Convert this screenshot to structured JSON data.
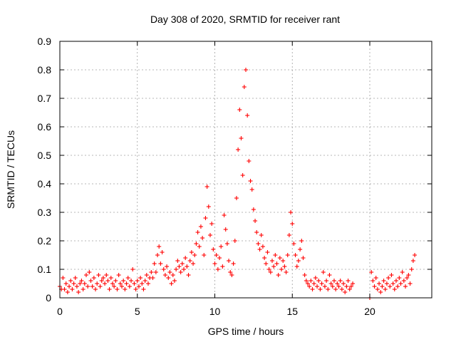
{
  "chart_data": {
    "type": "scatter",
    "title": "Day 308 of 2020, SRMTID for receiver rant",
    "xlabel": "GPS time / hours",
    "ylabel": "SRMTID / TECUs",
    "xlim": [
      0,
      24
    ],
    "ylim": [
      0,
      0.9
    ],
    "xticks": [
      0,
      5,
      10,
      15,
      20
    ],
    "yticks": [
      0,
      0.1,
      0.2,
      0.3,
      0.4,
      0.5,
      0.6,
      0.7,
      0.8,
      0.9
    ],
    "xtick_labels": [
      "0",
      "5",
      "10",
      "15",
      "20"
    ],
    "ytick_labels": [
      "0",
      "0.1",
      "0.2",
      "0.3",
      "0.4",
      "0.5",
      "0.6",
      "0.7",
      "0.8",
      "0.9"
    ],
    "grid": true,
    "marker": "+",
    "color": "#ff0000",
    "series": [
      {
        "name": "SRMTID",
        "points": [
          [
            0.0,
            0.04
          ],
          [
            0.1,
            0.03
          ],
          [
            0.2,
            0.07
          ],
          [
            0.3,
            0.03
          ],
          [
            0.4,
            0.05
          ],
          [
            0.5,
            0.02
          ],
          [
            0.6,
            0.04
          ],
          [
            0.7,
            0.06
          ],
          [
            0.8,
            0.03
          ],
          [
            0.9,
            0.05
          ],
          [
            1.0,
            0.07
          ],
          [
            1.1,
            0.04
          ],
          [
            1.2,
            0.02
          ],
          [
            1.3,
            0.05
          ],
          [
            1.4,
            0.06
          ],
          [
            1.5,
            0.03
          ],
          [
            1.6,
            0.05
          ],
          [
            1.7,
            0.08
          ],
          [
            1.8,
            0.04
          ],
          [
            1.9,
            0.09
          ],
          [
            2.0,
            0.06
          ],
          [
            2.1,
            0.04
          ],
          [
            2.2,
            0.07
          ],
          [
            2.3,
            0.03
          ],
          [
            2.4,
            0.05
          ],
          [
            2.5,
            0.08
          ],
          [
            2.6,
            0.04
          ],
          [
            2.7,
            0.06
          ],
          [
            2.8,
            0.07
          ],
          [
            2.9,
            0.05
          ],
          [
            3.0,
            0.08
          ],
          [
            3.1,
            0.06
          ],
          [
            3.2,
            0.03
          ],
          [
            3.3,
            0.07
          ],
          [
            3.4,
            0.05
          ],
          [
            3.5,
            0.04
          ],
          [
            3.6,
            0.06
          ],
          [
            3.7,
            0.03
          ],
          [
            3.8,
            0.08
          ],
          [
            3.9,
            0.05
          ],
          [
            4.0,
            0.04
          ],
          [
            4.1,
            0.06
          ],
          [
            4.2,
            0.03
          ],
          [
            4.3,
            0.05
          ],
          [
            4.4,
            0.07
          ],
          [
            4.5,
            0.04
          ],
          [
            4.6,
            0.06
          ],
          [
            4.7,
            0.1
          ],
          [
            4.8,
            0.05
          ],
          [
            4.9,
            0.03
          ],
          [
            5.0,
            0.06
          ],
          [
            5.1,
            0.04
          ],
          [
            5.2,
            0.07
          ],
          [
            5.3,
            0.05
          ],
          [
            5.4,
            0.03
          ],
          [
            5.5,
            0.06
          ],
          [
            5.6,
            0.08
          ],
          [
            5.7,
            0.05
          ],
          [
            5.8,
            0.07
          ],
          [
            5.9,
            0.09
          ],
          [
            6.0,
            0.07
          ],
          [
            6.1,
            0.12
          ],
          [
            6.2,
            0.09
          ],
          [
            6.3,
            0.15
          ],
          [
            6.4,
            0.18
          ],
          [
            6.5,
            0.12
          ],
          [
            6.6,
            0.16
          ],
          [
            6.7,
            0.1
          ],
          [
            6.8,
            0.08
          ],
          [
            6.9,
            0.11
          ],
          [
            7.0,
            0.07
          ],
          [
            7.1,
            0.09
          ],
          [
            7.2,
            0.05
          ],
          [
            7.3,
            0.08
          ],
          [
            7.4,
            0.06
          ],
          [
            7.5,
            0.1
          ],
          [
            7.6,
            0.13
          ],
          [
            7.7,
            0.11
          ],
          [
            7.8,
            0.09
          ],
          [
            7.9,
            0.12
          ],
          [
            8.0,
            0.1
          ],
          [
            8.1,
            0.14
          ],
          [
            8.2,
            0.11
          ],
          [
            8.3,
            0.08
          ],
          [
            8.4,
            0.13
          ],
          [
            8.5,
            0.16
          ],
          [
            8.6,
            0.12
          ],
          [
            8.7,
            0.15
          ],
          [
            8.8,
            0.19
          ],
          [
            8.9,
            0.23
          ],
          [
            9.0,
            0.18
          ],
          [
            9.1,
            0.25
          ],
          [
            9.2,
            0.21
          ],
          [
            9.3,
            0.15
          ],
          [
            9.4,
            0.28
          ],
          [
            9.5,
            0.39
          ],
          [
            9.6,
            0.32
          ],
          [
            9.7,
            0.22
          ],
          [
            9.8,
            0.26
          ],
          [
            9.9,
            0.17
          ],
          [
            10.0,
            0.12
          ],
          [
            10.1,
            0.15
          ],
          [
            10.2,
            0.1
          ],
          [
            10.3,
            0.14
          ],
          [
            10.4,
            0.18
          ],
          [
            10.5,
            0.11
          ],
          [
            10.6,
            0.29
          ],
          [
            10.7,
            0.24
          ],
          [
            10.8,
            0.19
          ],
          [
            10.9,
            0.13
          ],
          [
            11.0,
            0.09
          ],
          [
            11.1,
            0.08
          ],
          [
            11.2,
            0.12
          ],
          [
            11.3,
            0.2
          ],
          [
            11.4,
            0.35
          ],
          [
            11.5,
            0.52
          ],
          [
            11.6,
            0.66
          ],
          [
            11.7,
            0.56
          ],
          [
            11.8,
            0.43
          ],
          [
            11.9,
            0.74
          ],
          [
            12.0,
            0.8
          ],
          [
            12.1,
            0.64
          ],
          [
            12.2,
            0.48
          ],
          [
            12.3,
            0.41
          ],
          [
            12.4,
            0.38
          ],
          [
            12.5,
            0.31
          ],
          [
            12.6,
            0.27
          ],
          [
            12.7,
            0.23
          ],
          [
            12.8,
            0.19
          ],
          [
            12.9,
            0.17
          ],
          [
            13.0,
            0.22
          ],
          [
            13.1,
            0.18
          ],
          [
            13.2,
            0.14
          ],
          [
            13.3,
            0.12
          ],
          [
            13.4,
            0.16
          ],
          [
            13.5,
            0.1
          ],
          [
            13.6,
            0.09
          ],
          [
            13.7,
            0.13
          ],
          [
            13.8,
            0.11
          ],
          [
            13.9,
            0.15
          ],
          [
            14.0,
            0.12
          ],
          [
            14.1,
            0.08
          ],
          [
            14.2,
            0.14
          ],
          [
            14.3,
            0.1
          ],
          [
            14.4,
            0.13
          ],
          [
            14.5,
            0.11
          ],
          [
            14.6,
            0.09
          ],
          [
            14.7,
            0.15
          ],
          [
            14.8,
            0.22
          ],
          [
            14.9,
            0.3
          ],
          [
            15.0,
            0.26
          ],
          [
            15.1,
            0.19
          ],
          [
            15.2,
            0.15
          ],
          [
            15.3,
            0.11
          ],
          [
            15.4,
            0.13
          ],
          [
            15.5,
            0.17
          ],
          [
            15.6,
            0.2
          ],
          [
            15.7,
            0.14
          ],
          [
            15.8,
            0.08
          ],
          [
            15.9,
            0.06
          ],
          [
            16.0,
            0.05
          ],
          [
            16.1,
            0.04
          ],
          [
            16.2,
            0.06
          ],
          [
            16.3,
            0.03
          ],
          [
            16.4,
            0.05
          ],
          [
            16.5,
            0.07
          ],
          [
            16.6,
            0.04
          ],
          [
            16.7,
            0.06
          ],
          [
            16.8,
            0.03
          ],
          [
            16.9,
            0.05
          ],
          [
            17.0,
            0.09
          ],
          [
            17.1,
            0.04
          ],
          [
            17.2,
            0.06
          ],
          [
            17.3,
            0.03
          ],
          [
            17.4,
            0.08
          ],
          [
            17.5,
            0.05
          ],
          [
            17.6,
            0.04
          ],
          [
            17.7,
            0.06
          ],
          [
            17.8,
            0.03
          ],
          [
            17.9,
            0.05
          ],
          [
            18.0,
            0.04
          ],
          [
            18.1,
            0.06
          ],
          [
            18.2,
            0.03
          ],
          [
            18.3,
            0.05
          ],
          [
            18.4,
            0.02
          ],
          [
            18.5,
            0.04
          ],
          [
            18.6,
            0.06
          ],
          [
            18.7,
            0.03
          ],
          [
            18.8,
            0.04
          ],
          [
            18.9,
            0.05
          ],
          [
            20.0,
            0.0
          ],
          [
            20.1,
            0.09
          ],
          [
            20.2,
            0.06
          ],
          [
            20.3,
            0.04
          ],
          [
            20.4,
            0.07
          ],
          [
            20.5,
            0.03
          ],
          [
            20.6,
            0.05
          ],
          [
            20.7,
            0.02
          ],
          [
            20.8,
            0.04
          ],
          [
            20.9,
            0.06
          ],
          [
            21.0,
            0.03
          ],
          [
            21.1,
            0.05
          ],
          [
            21.2,
            0.07
          ],
          [
            21.3,
            0.04
          ],
          [
            21.4,
            0.08
          ],
          [
            21.5,
            0.05
          ],
          [
            21.6,
            0.03
          ],
          [
            21.7,
            0.06
          ],
          [
            21.8,
            0.04
          ],
          [
            21.9,
            0.07
          ],
          [
            22.0,
            0.05
          ],
          [
            22.1,
            0.09
          ],
          [
            22.2,
            0.06
          ],
          [
            22.3,
            0.04
          ],
          [
            22.4,
            0.07
          ],
          [
            22.5,
            0.08
          ],
          [
            22.6,
            0.05
          ],
          [
            22.7,
            0.1
          ],
          [
            22.8,
            0.13
          ],
          [
            22.9,
            0.15
          ]
        ]
      }
    ]
  }
}
